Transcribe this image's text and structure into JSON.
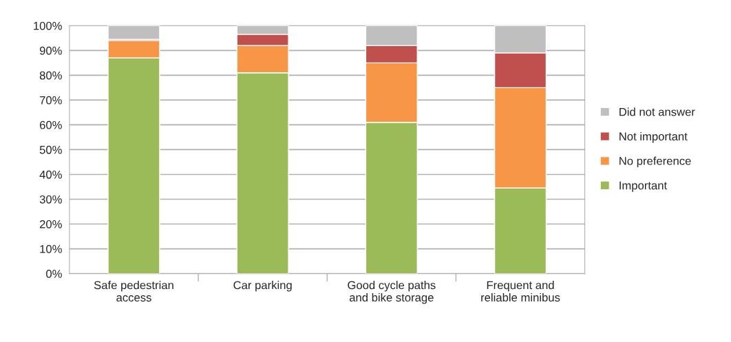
{
  "chart_data": {
    "type": "bar",
    "stacked": true,
    "categories": [
      "Safe pedestrian\naccess",
      "Car parking",
      "Good cycle paths\nand bike storage",
      "Frequent and\nreliable minibus"
    ],
    "series": [
      {
        "name": "Important",
        "color": "#9bbb59",
        "values": [
          87,
          81,
          61,
          34.5
        ]
      },
      {
        "name": "No preference",
        "color": "#f79646",
        "values": [
          7,
          11,
          24,
          40.5
        ]
      },
      {
        "name": "Not important",
        "color": "#c0504d",
        "values": [
          0.5,
          4.5,
          7,
          14
        ]
      },
      {
        "name": "Did not answer",
        "color": "#bfbfbf",
        "values": [
          5.5,
          3.5,
          8,
          11
        ]
      }
    ],
    "ylim": [
      0,
      100
    ],
    "yticks": [
      {
        "value": 0,
        "label": "0%"
      },
      {
        "value": 10,
        "label": "10%"
      },
      {
        "value": 20,
        "label": "20%"
      },
      {
        "value": 30,
        "label": "30%"
      },
      {
        "value": 40,
        "label": "40%"
      },
      {
        "value": 50,
        "label": "50%"
      },
      {
        "value": 60,
        "label": "60%"
      },
      {
        "value": 70,
        "label": "70%"
      },
      {
        "value": 80,
        "label": "80%"
      },
      {
        "value": 90,
        "label": "90%"
      },
      {
        "value": 100,
        "label": "100%"
      }
    ],
    "grid": "y",
    "legend": "right"
  }
}
